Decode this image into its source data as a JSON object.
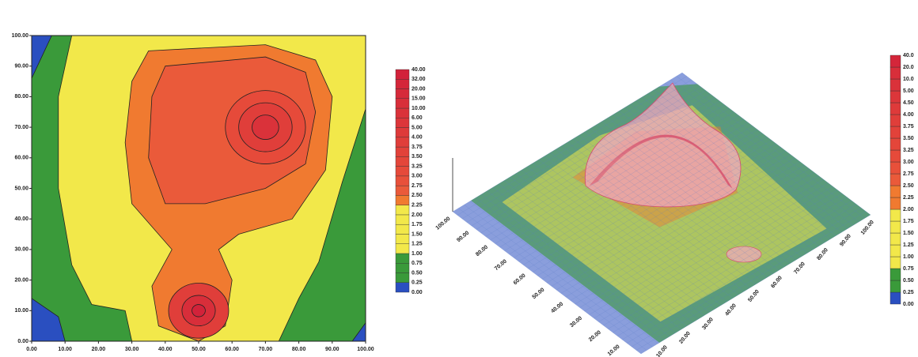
{
  "chart_data": [
    {
      "type": "contour",
      "xlim": [
        0,
        100
      ],
      "ylim": [
        0,
        100
      ],
      "xticks": [
        {
          "value": 0,
          "label": "0.00"
        },
        {
          "value": 10,
          "label": "10.00"
        },
        {
          "value": 20,
          "label": "20.00"
        },
        {
          "value": 30,
          "label": "30.00"
        },
        {
          "value": 40,
          "label": "40.00"
        },
        {
          "value": 50,
          "label": "50.00"
        },
        {
          "value": 60,
          "label": "60.00"
        },
        {
          "value": 70,
          "label": "70.00"
        },
        {
          "value": 80,
          "label": "80.00"
        },
        {
          "value": 90,
          "label": "90.00"
        },
        {
          "value": 100,
          "label": "100.00"
        }
      ],
      "yticks": [
        {
          "value": 0,
          "label": "0.00"
        },
        {
          "value": 10,
          "label": "10.00"
        },
        {
          "value": 20,
          "label": "20.00"
        },
        {
          "value": 30,
          "label": "30.00"
        },
        {
          "value": 40,
          "label": "40.00"
        },
        {
          "value": 50,
          "label": "50.00"
        },
        {
          "value": 60,
          "label": "60.00"
        },
        {
          "value": 70,
          "label": "70.00"
        },
        {
          "value": 80,
          "label": "80.00"
        },
        {
          "value": 90,
          "label": "90.00"
        },
        {
          "value": 100,
          "label": "100.00"
        }
      ],
      "levels": [
        {
          "value": 0,
          "label": "0.00"
        },
        {
          "value": 0.25,
          "label": "0.25"
        },
        {
          "value": 0.5,
          "label": "0.50"
        },
        {
          "value": 0.75,
          "label": "0.75"
        },
        {
          "value": 1,
          "label": "1.00"
        },
        {
          "value": 1.25,
          "label": "1.25"
        },
        {
          "value": 1.5,
          "label": "1.50"
        },
        {
          "value": 1.75,
          "label": "1.75"
        },
        {
          "value": 2,
          "label": "2.00"
        },
        {
          "value": 2.25,
          "label": "2.25"
        },
        {
          "value": 2.5,
          "label": "2.50"
        },
        {
          "value": 2.75,
          "label": "2.75"
        },
        {
          "value": 3,
          "label": "3.00"
        },
        {
          "value": 3.25,
          "label": "3.25"
        },
        {
          "value": 3.5,
          "label": "3.50"
        },
        {
          "value": 3.75,
          "label": "3.75"
        },
        {
          "value": 4,
          "label": "4.00"
        },
        {
          "value": 5,
          "label": "5.00"
        },
        {
          "value": 6,
          "label": "6.00"
        },
        {
          "value": 10,
          "label": "10.00"
        },
        {
          "value": 15,
          "label": "15.00"
        },
        {
          "value": 20,
          "label": "20.00"
        },
        {
          "value": 32,
          "label": "32.00"
        },
        {
          "value": 40,
          "label": "40.00"
        }
      ],
      "colors": [
        "#2a4fc0",
        "#3a9a3a",
        "#3a9a3a",
        "#3a9a3a",
        "#f2e84a",
        "#f2e84a",
        "#f2e84a",
        "#f2e84a",
        "#f2e84a",
        "#f07a30",
        "#ea5a3a",
        "#e8503a",
        "#e64a3a",
        "#e4463a",
        "#e2423a",
        "#e03e3a",
        "#de3a3a",
        "#dc363a",
        "#da323a",
        "#d82e3a",
        "#d62a3a",
        "#d4263a",
        "#d2223a"
      ]
    },
    {
      "type": "surface",
      "xticks": [
        {
          "value": 0,
          "label": "0.00"
        },
        {
          "value": 10,
          "label": "10.00"
        },
        {
          "value": 20,
          "label": "20.00"
        },
        {
          "value": 30,
          "label": "30.00"
        },
        {
          "value": 40,
          "label": "40.00"
        },
        {
          "value": 50,
          "label": "50.00"
        },
        {
          "value": 60,
          "label": "60.00"
        },
        {
          "value": 70,
          "label": "70.00"
        },
        {
          "value": 80,
          "label": "80.00"
        },
        {
          "value": 90,
          "label": "90.00"
        },
        {
          "value": 100,
          "label": "100.00"
        }
      ],
      "yticks": [
        {
          "value": 0,
          "label": "0.00"
        },
        {
          "value": 10,
          "label": "10.00"
        },
        {
          "value": 20,
          "label": "20.00"
        },
        {
          "value": 30,
          "label": "30.00"
        },
        {
          "value": 40,
          "label": "40.00"
        },
        {
          "value": 50,
          "label": "50.00"
        },
        {
          "value": 60,
          "label": "60.00"
        },
        {
          "value": 70,
          "label": "70.00"
        },
        {
          "value": 80,
          "label": "80.00"
        },
        {
          "value": 90,
          "label": "90.00"
        },
        {
          "value": 100,
          "label": "100.00"
        }
      ],
      "levels": [
        {
          "value": 0,
          "label": "0.00"
        },
        {
          "value": 0.25,
          "label": "0.25"
        },
        {
          "value": 0.5,
          "label": "0.50"
        },
        {
          "value": 0.75,
          "label": "0.75"
        },
        {
          "value": 1,
          "label": "1.00"
        },
        {
          "value": 1.25,
          "label": "1.25"
        },
        {
          "value": 1.5,
          "label": "1.50"
        },
        {
          "value": 1.75,
          "label": "1.75"
        },
        {
          "value": 2,
          "label": "2.00"
        },
        {
          "value": 2.25,
          "label": "2.25"
        },
        {
          "value": 2.5,
          "label": "2.50"
        },
        {
          "value": 2.75,
          "label": "2.75"
        },
        {
          "value": 3,
          "label": "3.00"
        },
        {
          "value": 3.25,
          "label": "3.25"
        },
        {
          "value": 3.5,
          "label": "3.50"
        },
        {
          "value": 3.75,
          "label": "3.75"
        },
        {
          "value": 4,
          "label": "4.00"
        },
        {
          "value": 4.5,
          "label": "4.50"
        },
        {
          "value": 5,
          "label": "5.00"
        },
        {
          "value": 10,
          "label": "10.0"
        },
        {
          "value": 20,
          "label": "20.0"
        },
        {
          "value": 40,
          "label": "40.0"
        }
      ],
      "colors": [
        "#2a4fc0",
        "#3a9a3a",
        "#3a9a3a",
        "#f2e84a",
        "#f2e84a",
        "#f2e84a",
        "#f2e84a",
        "#f2e84a",
        "#f07a30",
        "#f07a30",
        "#ea5a3a",
        "#e8503a",
        "#e64a3a",
        "#e4463a",
        "#e2423a",
        "#e03e3a",
        "#de3a3a",
        "#dc363a",
        "#da323a",
        "#d82e3a",
        "#d4263a"
      ]
    }
  ]
}
